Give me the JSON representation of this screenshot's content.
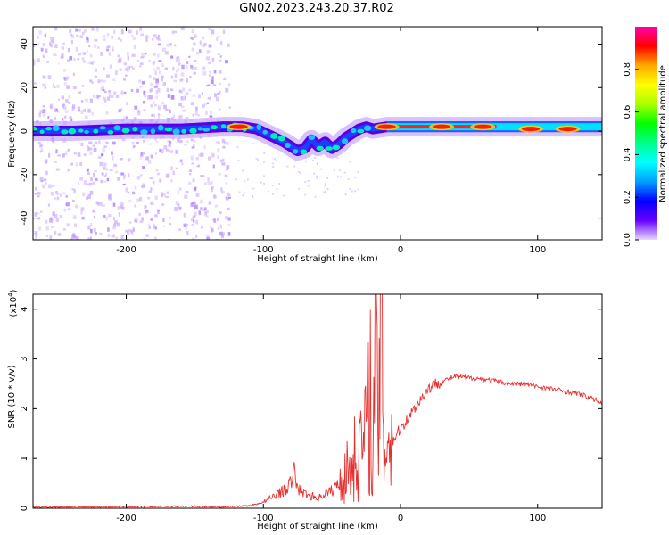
{
  "figure_title": "GN02.2023.243.20.37.R02",
  "colors": {
    "snr_line": "#e8312f",
    "band_dark": "#5a00e0",
    "band_light": "#c8a6ff",
    "axis": "#000000"
  },
  "chart_data": [
    {
      "type": "heatmap",
      "name": "spectrogram",
      "xlabel": "Height of straight line (km)",
      "ylabel": "Frequency (Hz)",
      "xlim": [
        -268,
        147
      ],
      "ylim": [
        -50,
        48
      ],
      "xticks": [
        -200,
        -100,
        0,
        100
      ],
      "yticks": [
        -40,
        -20,
        0,
        20,
        40
      ],
      "grid": false,
      "colorbar": {
        "label": "Normalized spectral amplitude",
        "range": [
          0.0,
          1.0
        ],
        "ticks": [
          "0.0",
          "0.2",
          "0.4",
          "0.6",
          "0.8"
        ],
        "colors": [
          "#e8d8ff",
          "#6600ff",
          "#0000ff",
          "#00a0ff",
          "#00ffff",
          "#00ff88",
          "#00ff00",
          "#aaff00",
          "#ffff00",
          "#ffaa00",
          "#ff0000",
          "#ff00aa"
        ]
      },
      "ridge_frequency_hz": {
        "x": [
          -268,
          -240,
          -200,
          -160,
          -130,
          -115,
          -105,
          -95,
          -85,
          -75,
          -70,
          -65,
          -60,
          -55,
          -50,
          -45,
          -40,
          -35,
          -30,
          -25,
          -20,
          -10,
          0,
          50,
          100,
          147
        ],
        "y": [
          0,
          0,
          1,
          1,
          2,
          2,
          1,
          -2,
          -5,
          -9,
          -8,
          -4,
          -7,
          -5,
          -8,
          -6,
          -3,
          -1,
          1,
          2,
          1,
          2,
          2,
          2,
          2,
          2
        ]
      },
      "amplitude_peaks": [
        {
          "x": -118,
          "y": 2,
          "level": 1.0
        },
        {
          "x": -10,
          "y": 2,
          "level": 1.0
        },
        {
          "x": 30,
          "y": 2,
          "level": 1.0
        },
        {
          "x": 60,
          "y": 2,
          "level": 0.95
        },
        {
          "x": 95,
          "y": 1,
          "level": 0.9
        },
        {
          "x": 122,
          "y": 1,
          "level": 0.9
        }
      ]
    },
    {
      "type": "line",
      "name": "snr",
      "xlabel": "Height of straight line (km)",
      "ylabel": "SNR (10 * v/v)",
      "scale_label": "(x10",
      "scale_exponent": "4",
      "xlim": [
        -268,
        147
      ],
      "ylim": [
        0,
        4.3
      ],
      "xticks": [
        -200,
        -100,
        0,
        100
      ],
      "yticks": [
        0,
        1,
        2,
        3,
        4
      ],
      "grid": false,
      "series": [
        {
          "x": [
            -268,
            -240,
            -200,
            -160,
            -130,
            -110,
            -100,
            -95,
            -90,
            -85,
            -80,
            -77,
            -75,
            -70,
            -65,
            -60,
            -55,
            -50,
            -45,
            -40,
            -35,
            -30,
            -25,
            -22,
            -20,
            -18,
            -16,
            -14,
            -12,
            -10,
            -5,
            0,
            5,
            10,
            15,
            20,
            25,
            30,
            35,
            40,
            50,
            60,
            70,
            80,
            90,
            100,
            110,
            120,
            130,
            140,
            147
          ],
          "y": [
            0.02,
            0.03,
            0.03,
            0.04,
            0.03,
            0.05,
            0.12,
            0.2,
            0.3,
            0.35,
            0.5,
            0.75,
            0.4,
            0.3,
            0.25,
            0.2,
            0.3,
            0.35,
            0.5,
            0.7,
            0.9,
            1.2,
            1.5,
            2.5,
            1.0,
            3.4,
            1.5,
            4.3,
            1.2,
            1.5,
            1.4,
            1.6,
            1.8,
            2.0,
            2.2,
            2.4,
            2.5,
            2.55,
            2.6,
            2.65,
            2.62,
            2.6,
            2.55,
            2.5,
            2.5,
            2.45,
            2.4,
            2.35,
            2.3,
            2.2,
            2.12
          ]
        }
      ]
    }
  ]
}
